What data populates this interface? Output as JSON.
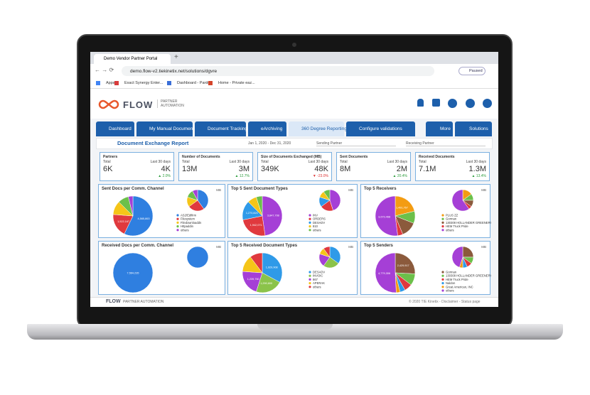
{
  "browser": {
    "tab": "Demo Vendor Partner Portal",
    "url": "demo.flow-v2.tiekinetix.net/solutions/dgvre",
    "profile": "Paused",
    "bookmarks": [
      "Apps",
      "Exact Synergy Enter...",
      "Dashboard - Pardot",
      "Home - Private eaz..."
    ]
  },
  "header": {
    "logo": "FLOW",
    "tagline": "PARTNER AUTOMATION"
  },
  "nav": {
    "tabs": [
      "Dashboard",
      "My Manual Documents",
      "Document Tracking",
      "eArchiving",
      "360 Degree Reporting",
      "Configure validations"
    ],
    "active": 4,
    "right": [
      "More",
      "Solutions"
    ]
  },
  "report": {
    "title": "Document Exchange Report",
    "date_range": "Jan 1, 2020 - Dec 31, 2020",
    "filters": [
      "Sending Partner",
      "Receiving Partner"
    ]
  },
  "kpis": [
    {
      "title": "Partners",
      "total_label": "Total",
      "total": "6K",
      "recent_label": "Last 30 days",
      "recent": "4K",
      "change": "▲ 2.0%",
      "trend": "up"
    },
    {
      "title": "Number of Documents",
      "total_label": "Total",
      "total": "13M",
      "recent_label": "Last 30 days",
      "recent": "3M",
      "change": "▲ 12.7%",
      "trend": "up"
    },
    {
      "title": "Size of Documents Exchanged (MB)",
      "total_label": "Total",
      "total": "349K",
      "recent_label": "Last 30 days",
      "recent": "48K",
      "change": "▼ -23.0%",
      "trend": "down"
    },
    {
      "title": "Sent Documents",
      "total_label": "Total",
      "total": "8M",
      "recent_label": "Last 30 days",
      "recent": "2M",
      "change": "▲ 20.4%",
      "trend": "up"
    },
    {
      "title": "Received Documents",
      "total_label": "Total",
      "total": "7.1M",
      "recent_label": "Last 30 days",
      "recent": "1.3M",
      "change": "▲ 13.4%",
      "trend": "up"
    }
  ],
  "panels": [
    {
      "title": "Sent Docs per Comm. Channel",
      "unit": "MB",
      "legend": [
        "AS2/Edifirm",
        "Filesystem",
        "Filedownloaddn",
        "Httpaddin",
        "others"
      ],
      "colors": [
        "#2f7fe0",
        "#e0393e",
        "#f5c518",
        "#6cc04a",
        "#a53fd6"
      ],
      "values": [
        4565863,
        1522167,
        900000,
        700000,
        300000
      ],
      "value_labels": [
        "4,565,863",
        "1,522,167",
        null,
        null,
        null
      ],
      "mb_values": [
        40,
        25,
        15,
        12,
        8
      ]
    },
    {
      "title": "Top 5 Sent Document Types",
      "unit": "MB",
      "legend": [
        "INV",
        "ORDERS",
        "DESADV",
        "810",
        "others"
      ],
      "colors": [
        "#a53fd6",
        "#e0393e",
        "#2f9ae8",
        "#f5c518",
        "#6cc04a"
      ],
      "values": [
        3847708,
        1942071,
        1270820,
        600000,
        400000
      ],
      "value_labels": [
        "3,847,708",
        "1,942,071",
        "1,270,820",
        null,
        null
      ],
      "mb_values": [
        45,
        20,
        15,
        10,
        10
      ]
    },
    {
      "title": "Top 5 Receivers",
      "unit": "MB",
      "legend": [
        "PLUS ZZ",
        "Gorman",
        "130308 HOLLANDER GREENERY",
        "HEM Truck Pride",
        "others"
      ],
      "colors": [
        "#f39c12",
        "#6cc04a",
        "#8b5a3c",
        "#e0393e",
        "#a53fd6"
      ],
      "values": [
        1491767,
        700000,
        900000,
        300000,
        3673468
      ],
      "value_labels": [
        "1,491,767",
        null,
        null,
        null,
        "3,673,468"
      ],
      "mb_values": [
        15,
        10,
        10,
        5,
        60
      ]
    },
    {
      "title": "Received Docs per Comm. Channel",
      "unit": "MB",
      "legend": [],
      "colors": [
        "#2f7fe0"
      ],
      "values": [
        7564235
      ],
      "value_labels": [
        "7,564,235"
      ],
      "mb_values": [
        100
      ]
    },
    {
      "title": "Top 5 Received Document Types",
      "unit": "MB",
      "legend": [
        "DESADV",
        "INVOIC",
        "867",
        "APERAK",
        "others"
      ],
      "colors": [
        "#2f9ae8",
        "#8bc34a",
        "#a53fd6",
        "#f5c518",
        "#e0393e"
      ],
      "values": [
        1929908,
        1290600,
        1239760,
        800000,
        600000
      ],
      "value_labels": [
        "1,929,908",
        "1,290,600",
        "1,239,760",
        null,
        null
      ],
      "mb_values": [
        35,
        25,
        20,
        10,
        10
      ]
    },
    {
      "title": "Top 5 Senders",
      "unit": "MB",
      "legend": [
        "Gorman",
        "130308 HOLLANDER GREENERY",
        "HEM Truck Pride",
        "Naldon",
        "Great American, INC",
        "others"
      ],
      "colors": [
        "#8b5a3c",
        "#6cc04a",
        "#e0393e",
        "#2f9ae8",
        "#f39c12",
        "#a53fd6"
      ],
      "values": [
        2429917,
        900000,
        600000,
        400000,
        300000,
        4779306
      ],
      "value_labels": [
        "2,429,917",
        null,
        null,
        null,
        null,
        "4,779,306"
      ],
      "mb_values": [
        25,
        10,
        8,
        7,
        5,
        45
      ]
    }
  ],
  "footer": {
    "logo": "FLOW",
    "tagline": "PARTNER AUTOMATION",
    "text": "© 2020 TIE Kinetix - Disclaimer - Status page"
  }
}
